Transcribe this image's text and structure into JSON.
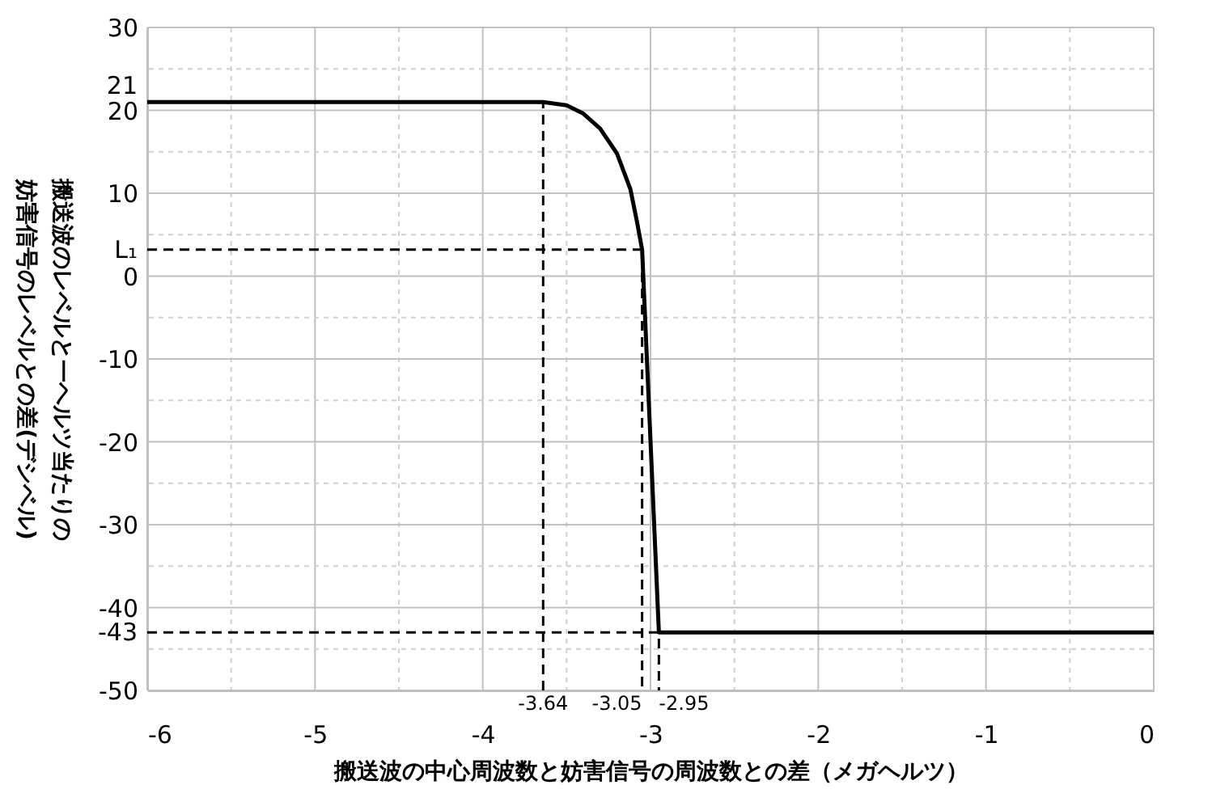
{
  "chart_data": {
    "type": "line",
    "xlabel": "搬送波の中心周波数と妨害信号の周波数との差（メガヘルツ）",
    "ylabel": "搬送波のレベルと一ヘルツ当たりの妨害信号のレベルとの差(デシベル)",
    "xlim": [
      -6,
      0
    ],
    "ylim": [
      -50,
      30
    ],
    "grid": true,
    "xticks": [
      -6,
      {
        "value": -5.5,
        "label": null
      },
      -5,
      {
        "value": -4.5,
        "label": null
      },
      -4,
      {
        "value": -3.5,
        "label": null
      },
      -3,
      {
        "value": -2.5,
        "label": null
      },
      -2,
      {
        "value": -1.5,
        "label": null
      },
      -1,
      {
        "value": -0.5,
        "label": null
      },
      0
    ],
    "yticks": [
      30,
      {
        "value": 25,
        "label": null
      },
      21,
      20,
      {
        "value": 15,
        "label": null
      },
      10,
      {
        "value": 5,
        "label": null
      },
      0,
      {
        "value": -5,
        "label": null
      },
      -10,
      {
        "value": -15,
        "label": null
      },
      -20,
      {
        "value": -25,
        "label": null
      },
      -30,
      {
        "value": -35,
        "label": null
      },
      -40,
      -43,
      {
        "value": -45,
        "label": null
      },
      -50
    ],
    "annotations": [
      {
        "text": "L₁",
        "x": -6,
        "y": 3.2
      },
      {
        "text": "-3.64",
        "x": -3.64,
        "y": -50
      },
      {
        "text": "-3.05",
        "x": -3.05,
        "y": -50
      },
      {
        "text": "-2.95",
        "x": -2.95,
        "y": -50
      }
    ],
    "series": [
      {
        "color": "#000000",
        "x": [
          -6,
          -3.64,
          -3.5,
          -3.4,
          -3.3,
          -3.2,
          -3.12,
          -3.08,
          -3.05,
          -2.95,
          0
        ],
        "values": [
          21,
          21,
          20.6,
          19.6,
          17.8,
          14.8,
          10.5,
          6.5,
          3.2,
          -43,
          -43
        ]
      },
      {
        "color": "#000000",
        "line_style": "dashed",
        "x": [
          -3.64,
          -3.64
        ],
        "values": [
          -50,
          21
        ]
      },
      {
        "color": "#000000",
        "line_style": "dashed",
        "x": [
          -6,
          -3.05,
          -3.05
        ],
        "values": [
          3.2,
          3.2,
          -50
        ]
      },
      {
        "color": "#000000",
        "line_style": "dashed",
        "x": [
          -6,
          -2.95,
          -2.95
        ],
        "values": [
          -43,
          -43,
          -50
        ]
      }
    ]
  }
}
